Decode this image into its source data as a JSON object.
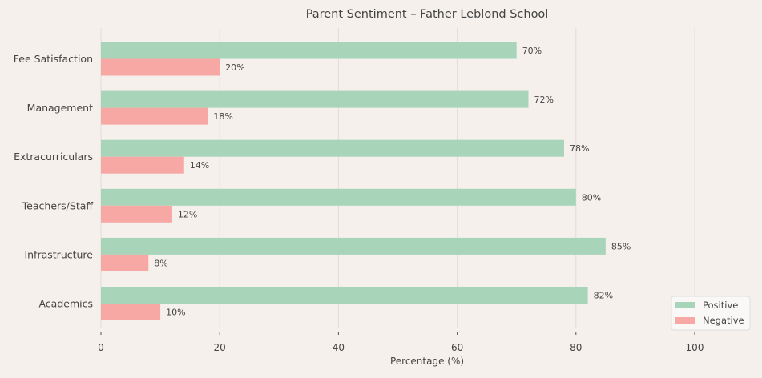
{
  "chart_data": {
    "type": "bar",
    "orientation": "horizontal",
    "title": "Parent Sentiment – Father Leblond School",
    "xlabel": "Percentage (%)",
    "ylabel": "",
    "categories": [
      "Academics",
      "Infrastructure",
      "Teachers/Staff",
      "Extracurriculars",
      "Management",
      "Fee Satisfaction"
    ],
    "series": [
      {
        "name": "Positive",
        "color": "#a8d5ba",
        "values": [
          82,
          85,
          80,
          78,
          72,
          70
        ]
      },
      {
        "name": "Negative",
        "color": "#f7a8a4",
        "values": [
          10,
          8,
          12,
          14,
          18,
          20
        ]
      }
    ],
    "xlim": [
      0,
      110
    ],
    "xticks": [
      0,
      20,
      40,
      60,
      80,
      100
    ],
    "grid": true,
    "data_label_suffix": "%",
    "legend": "lower-right"
  }
}
